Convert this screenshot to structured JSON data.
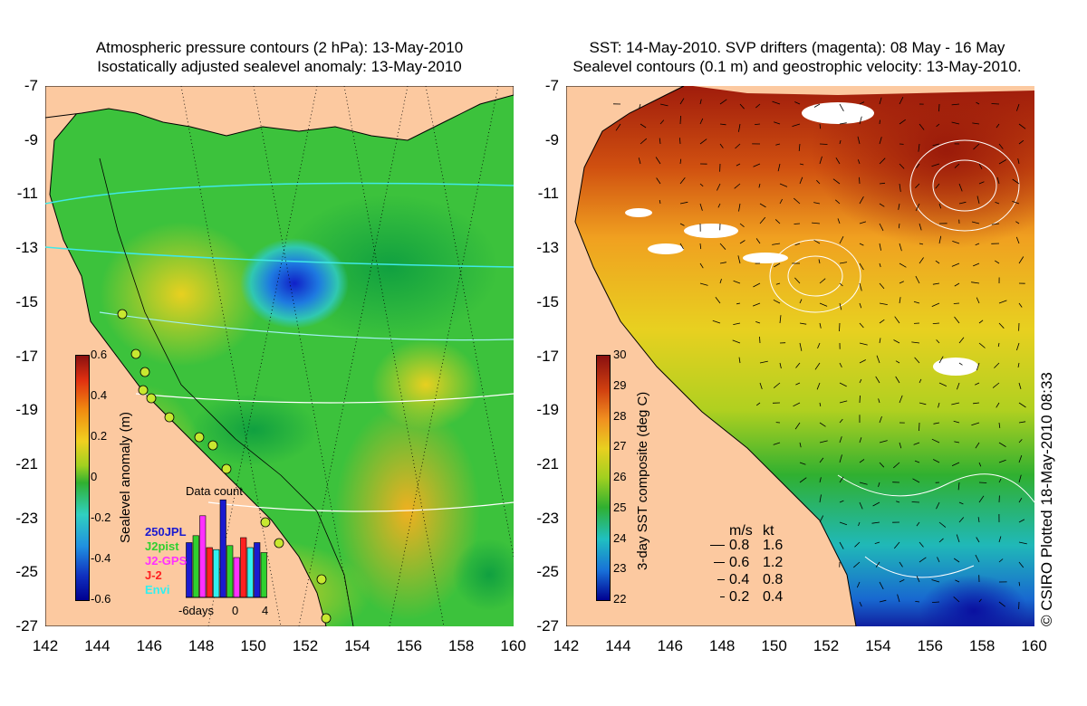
{
  "left_panel": {
    "title_line1": "Atmospheric pressure contours (2 hPa): 13-May-2010",
    "title_line2": "Isostatically adjusted sealevel anomaly: 13-May-2010",
    "colorbar": {
      "label": "Sealevel anomaly (m)",
      "ticks": [
        "0.6",
        "0.4",
        "0.2",
        "0",
        "-0.2",
        "-0.4",
        "-0.6"
      ]
    },
    "data_count": {
      "title": "Data count",
      "series": [
        {
          "name": "250JPL",
          "color": "#1a1ad0"
        },
        {
          "name": "J2pist",
          "color": "#2fd02f"
        },
        {
          "name": "J2-GPS",
          "color": "#ff30ff"
        },
        {
          "name": "J-2",
          "color": "#ff2020"
        },
        {
          "name": "Envi",
          "color": "#30f0f0"
        }
      ],
      "x_ticks": [
        "-6days",
        "0",
        "4"
      ],
      "bars": [
        0.55,
        0.62,
        0.82,
        0.5,
        0.48,
        0.98,
        0.52,
        0.4,
        0.6,
        0.5,
        0.55,
        0.45
      ]
    }
  },
  "right_panel": {
    "title_line1": "SST: 14-May-2010. SVP drifters (magenta): 08 May - 16 May",
    "title_line2": "Sealevel contours (0.1 m) and geostrophic velocity: 13-May-2010.",
    "colorbar": {
      "label": "3-day SST composite (deg C)",
      "ticks": [
        "30",
        "29",
        "28",
        "27",
        "26",
        "25",
        "24",
        "23",
        "22"
      ]
    },
    "velocity_legend": {
      "header_ms": "m/s",
      "header_kt": "kt",
      "rows": [
        {
          "ms": "0.8",
          "kt": "1.6"
        },
        {
          "ms": "0.6",
          "kt": "1.2"
        },
        {
          "ms": "0.4",
          "kt": "0.8"
        },
        {
          "ms": "0.2",
          "kt": "0.4"
        }
      ]
    }
  },
  "axes": {
    "y_ticks": [
      "-7",
      "-9",
      "-11",
      "-13",
      "-15",
      "-17",
      "-19",
      "-21",
      "-23",
      "-25",
      "-27"
    ],
    "x_ticks": [
      "142",
      "144",
      "146",
      "148",
      "150",
      "152",
      "154",
      "156",
      "158",
      "160"
    ]
  },
  "credit": "© CSIRO Plotted 18-May-2010 08:33",
  "colors": {
    "land": "#fcc9a0",
    "sla_low": "#0000a0",
    "sla_mid": "#2db82d",
    "sla_high": "#8a1010"
  }
}
